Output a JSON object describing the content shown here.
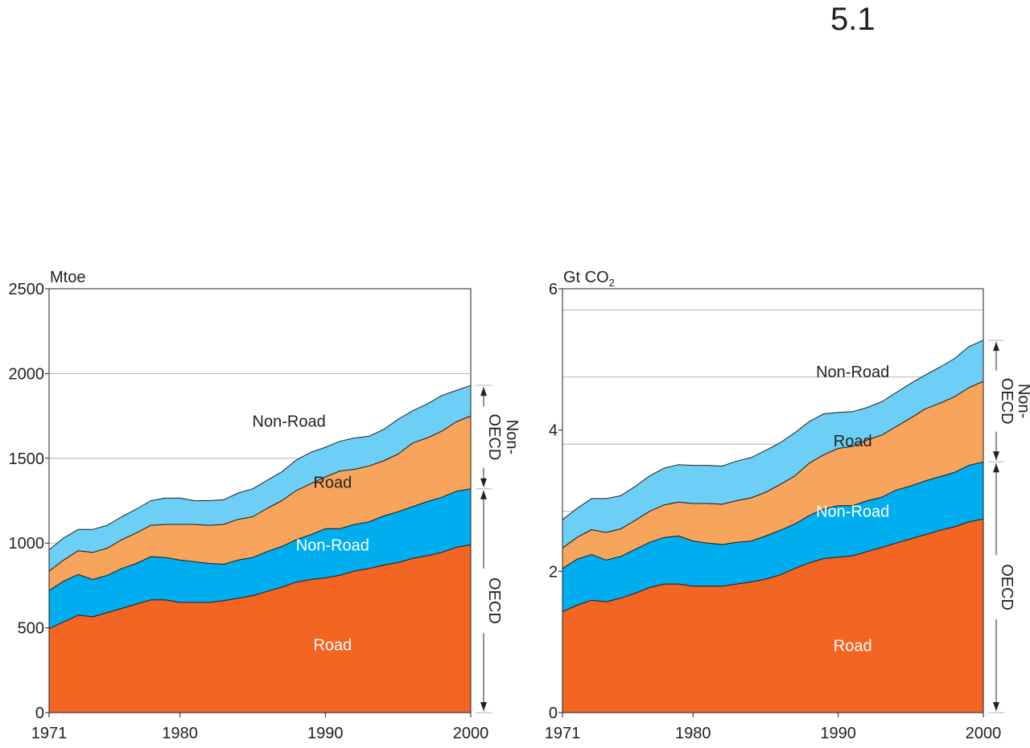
{
  "figure_number": "5.1",
  "colors": {
    "oecd_road": "#f26522",
    "oecd_nonroad": "#00aeef",
    "nonoecd_road": "#f7a55c",
    "nonoecd_nonroad": "#6dcff6",
    "axis": "#231f20",
    "grid": "#b3b3b3"
  },
  "group_labels": {
    "oecd": "OECD",
    "non_oecd_line1": "Non-",
    "non_oecd_line2": "OECD"
  },
  "chart_data": [
    {
      "type": "area",
      "stacked": true,
      "ylabel": "Mtoe",
      "ylim": [
        0,
        2500
      ],
      "yticks": [
        0,
        500,
        1000,
        1500,
        2000,
        2500
      ],
      "xlim": [
        1971,
        2000
      ],
      "xticks": [
        1971,
        1980,
        1990,
        2000
      ],
      "grid": "horizontal",
      "x": [
        1971,
        1972,
        1973,
        1974,
        1975,
        1976,
        1977,
        1978,
        1979,
        1980,
        1981,
        1982,
        1983,
        1984,
        1985,
        1986,
        1987,
        1988,
        1989,
        1990,
        1991,
        1992,
        1993,
        1994,
        1995,
        1996,
        1997,
        1998,
        1999,
        2000
      ],
      "series": [
        {
          "name": "Road",
          "group": "OECD",
          "color_key": "oecd_road",
          "values": [
            495,
            535,
            575,
            565,
            590,
            615,
            640,
            665,
            665,
            650,
            650,
            650,
            660,
            675,
            690,
            715,
            740,
            770,
            785,
            795,
            810,
            835,
            850,
            870,
            885,
            910,
            925,
            945,
            975,
            990
          ]
        },
        {
          "name": "Non-Road",
          "group": "OECD",
          "color_key": "oecd_nonroad",
          "values": [
            225,
            240,
            240,
            220,
            220,
            235,
            240,
            255,
            250,
            250,
            240,
            230,
            215,
            225,
            225,
            235,
            240,
            250,
            265,
            290,
            275,
            275,
            275,
            290,
            300,
            305,
            320,
            325,
            330,
            330
          ]
        },
        {
          "name": "Road",
          "group": "Non-OECD",
          "color_key": "nonoecd_road",
          "values": [
            115,
            125,
            140,
            160,
            160,
            170,
            180,
            185,
            195,
            210,
            220,
            225,
            235,
            240,
            240,
            255,
            270,
            290,
            300,
            305,
            340,
            325,
            330,
            325,
            340,
            375,
            375,
            390,
            410,
            430
          ]
        },
        {
          "name": "Non-Road",
          "group": "Non-OECD",
          "color_key": "nonoecd_nonroad",
          "values": [
            125,
            130,
            125,
            135,
            135,
            135,
            140,
            145,
            155,
            155,
            140,
            145,
            145,
            155,
            165,
            165,
            170,
            180,
            185,
            175,
            175,
            185,
            175,
            185,
            205,
            190,
            200,
            210,
            185,
            180
          ]
        }
      ],
      "series_labels": [
        {
          "text": "Road",
          "x": 1990.5,
          "y": 400,
          "color": "#ffffff"
        },
        {
          "text": "Non-Road",
          "x": 1990.5,
          "y": 990,
          "color": "#ffffff"
        },
        {
          "text": "Road",
          "x": 1990.5,
          "y": 1360,
          "color": "#231f20"
        },
        {
          "text": "Non-Road",
          "x": 1987.5,
          "y": 1720,
          "color": "#231f20"
        }
      ]
    },
    {
      "type": "area",
      "stacked": true,
      "ylabel": "Gt CO2",
      "ylabel_parts": [
        "Gt CO",
        "2"
      ],
      "ylim": [
        0,
        6
      ],
      "yticks": [
        0,
        2,
        4,
        6
      ],
      "ytick_labels": [
        0,
        2,
        4,
        6
      ],
      "gridlines": [
        0.95,
        1.9,
        2.85,
        3.8,
        4.75,
        5.7
      ],
      "xlim": [
        1971,
        2000
      ],
      "xticks": [
        1971,
        1980,
        1990,
        2000
      ],
      "grid": "horizontal",
      "x": [
        1971,
        1972,
        1973,
        1974,
        1975,
        1976,
        1977,
        1978,
        1979,
        1980,
        1981,
        1982,
        1983,
        1984,
        1985,
        1986,
        1987,
        1988,
        1989,
        1990,
        1991,
        1992,
        1993,
        1994,
        1995,
        1996,
        1997,
        1998,
        1999,
        2000
      ],
      "series": [
        {
          "name": "Road",
          "group": "OECD",
          "color_key": "oecd_road",
          "values": [
            1.43,
            1.52,
            1.59,
            1.57,
            1.62,
            1.69,
            1.77,
            1.82,
            1.82,
            1.79,
            1.79,
            1.79,
            1.82,
            1.85,
            1.89,
            1.95,
            2.04,
            2.12,
            2.18,
            2.2,
            2.22,
            2.28,
            2.34,
            2.4,
            2.46,
            2.52,
            2.58,
            2.63,
            2.7,
            2.74
          ]
        },
        {
          "name": "Non-Road",
          "group": "OECD",
          "color_key": "oecd_nonroad",
          "values": [
            0.61,
            0.65,
            0.65,
            0.59,
            0.59,
            0.62,
            0.64,
            0.66,
            0.68,
            0.64,
            0.61,
            0.59,
            0.59,
            0.58,
            0.61,
            0.63,
            0.63,
            0.67,
            0.7,
            0.73,
            0.71,
            0.72,
            0.71,
            0.75,
            0.75,
            0.76,
            0.76,
            0.77,
            0.8,
            0.81
          ]
        },
        {
          "name": "Road",
          "group": "Non-OECD",
          "color_key": "nonoecd_road",
          "values": [
            0.29,
            0.31,
            0.35,
            0.39,
            0.39,
            0.41,
            0.44,
            0.46,
            0.48,
            0.53,
            0.56,
            0.57,
            0.59,
            0.61,
            0.62,
            0.65,
            0.68,
            0.74,
            0.77,
            0.81,
            0.84,
            0.86,
            0.88,
            0.9,
            0.96,
            1.02,
            1.04,
            1.07,
            1.1,
            1.14
          ]
        },
        {
          "name": "Non-Road",
          "group": "Non-OECD",
          "color_key": "nonoecd_nonroad",
          "values": [
            0.4,
            0.41,
            0.44,
            0.48,
            0.47,
            0.48,
            0.5,
            0.52,
            0.53,
            0.54,
            0.54,
            0.54,
            0.56,
            0.57,
            0.59,
            0.59,
            0.61,
            0.59,
            0.58,
            0.51,
            0.49,
            0.46,
            0.47,
            0.48,
            0.49,
            0.48,
            0.51,
            0.54,
            0.58,
            0.58
          ]
        }
      ],
      "series_labels": [
        {
          "text": "Road",
          "x": 1991,
          "y": 0.95,
          "color": "#ffffff"
        },
        {
          "text": "Non-Road",
          "x": 1991,
          "y": 2.85,
          "color": "#ffffff"
        },
        {
          "text": "Road",
          "x": 1991,
          "y": 3.85,
          "color": "#231f20"
        },
        {
          "text": "Non-Road",
          "x": 1991,
          "y": 4.83,
          "color": "#231f20"
        }
      ]
    }
  ]
}
